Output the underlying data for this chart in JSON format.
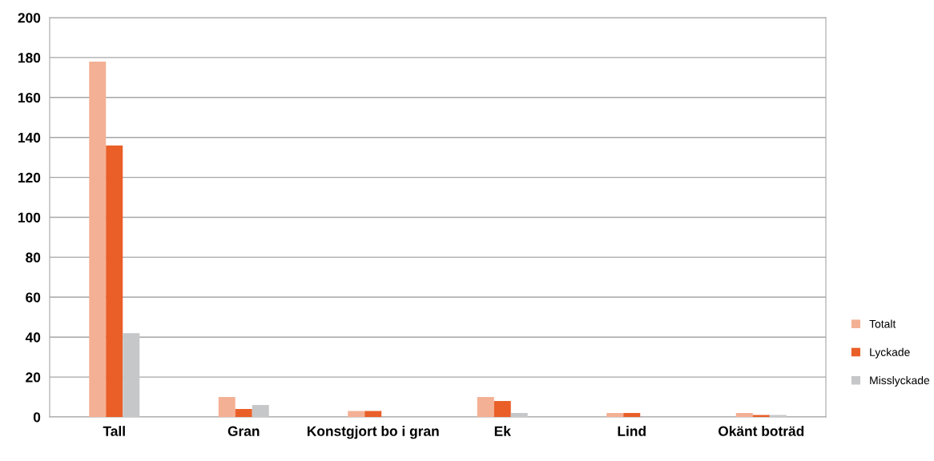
{
  "chart_data": {
    "type": "bar",
    "categories": [
      "Tall",
      "Gran",
      "Konstgjort bo i gran",
      "Ek",
      "Lind",
      "Okänt boträd"
    ],
    "series": [
      {
        "name": "Totalt",
        "color": "#f4b094",
        "values": [
          178,
          10,
          3,
          10,
          2,
          2
        ]
      },
      {
        "name": "Lyckade",
        "color": "#e95f27",
        "values": [
          136,
          4,
          3,
          8,
          2,
          1
        ]
      },
      {
        "name": "Misslyckade",
        "color": "#c6c7c8",
        "values": [
          42,
          6,
          0,
          2,
          0,
          1
        ]
      }
    ],
    "ylim": [
      0,
      200
    ],
    "yticks": [
      0,
      20,
      40,
      60,
      80,
      100,
      120,
      140,
      160,
      180,
      200
    ],
    "grid": "y",
    "legend": "right"
  }
}
